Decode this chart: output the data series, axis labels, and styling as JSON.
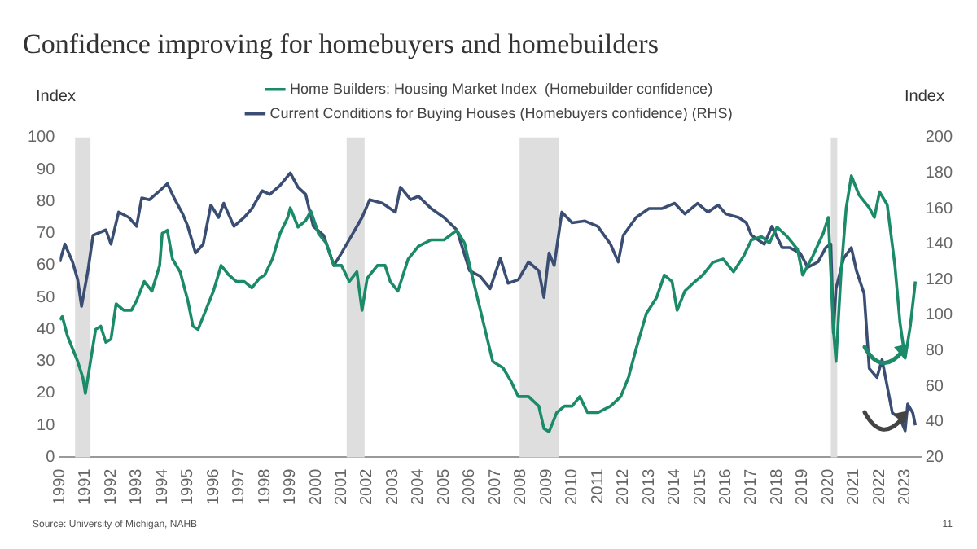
{
  "chart_data": {
    "type": "line",
    "title": "Confidence improving for homebuyers and homebuilders",
    "ylabel": "Index",
    "y2label": "Index",
    "annotations": [
      "Source: University of Michigan, NAHB",
      "11"
    ],
    "xlim": [
      1990,
      2023.6
    ],
    "xticks": [
      1990,
      1991,
      1992,
      1993,
      1994,
      1995,
      1996,
      1997,
      1998,
      1999,
      2000,
      2001,
      2002,
      2003,
      2004,
      2005,
      2006,
      2007,
      2008,
      2009,
      2010,
      2011,
      2012,
      2013,
      2014,
      2015,
      2016,
      2017,
      2018,
      2019,
      2020,
      2021,
      2022,
      2023
    ],
    "ylim": [
      0,
      100
    ],
    "yticks": [
      0,
      10,
      20,
      30,
      40,
      50,
      60,
      70,
      80,
      90,
      100
    ],
    "y2lim": [
      20,
      200
    ],
    "y2ticks": [
      20,
      40,
      60,
      80,
      100,
      120,
      140,
      160,
      180,
      200
    ],
    "grid": false,
    "legend": "top",
    "marker": "none",
    "line_style": "solid",
    "bands": [
      {
        "axis": "x",
        "from": 1990.6,
        "to": 1991.2,
        "color": "#dedede"
      },
      {
        "axis": "x",
        "from": 2001.2,
        "to": 2001.9,
        "color": "#dedede"
      },
      {
        "axis": "x",
        "from": 2007.95,
        "to": 2009.5,
        "color": "#dedede"
      },
      {
        "axis": "x",
        "from": 2020.1,
        "to": 2020.35,
        "color": "#dedede"
      }
    ],
    "series": [
      {
        "name": "Home Builders: Housing Market Index  (Homebuilder confidence)",
        "color": "#1b8a68",
        "x": [
          1990,
          1990.1,
          1990.3,
          1990.5,
          1990.7,
          1990.9,
          1991,
          1991.2,
          1991.4,
          1991.6,
          1991.8,
          1992,
          1992.2,
          1992.5,
          1992.8,
          1993,
          1993.3,
          1993.6,
          1993.9,
          1994,
          1994.2,
          1994.4,
          1994.7,
          1995,
          1995.2,
          1995.4,
          1995.7,
          1996,
          1996.3,
          1996.6,
          1996.9,
          1997.2,
          1997.5,
          1997.8,
          1998,
          1998.3,
          1998.6,
          1998.9,
          1999,
          1999.3,
          1999.6,
          1999.8,
          2000.1,
          2000.4,
          2000.7,
          2001,
          2001.3,
          2001.6,
          2001.8,
          2002,
          2002.4,
          2002.7,
          2002.9,
          2003.2,
          2003.6,
          2004,
          2004.5,
          2005,
          2005.5,
          2005.8,
          2006,
          2006.3,
          2006.6,
          2006.9,
          2007.3,
          2007.6,
          2007.9,
          2008.3,
          2008.7,
          2008.9,
          2009.1,
          2009.4,
          2009.7,
          2010,
          2010.3,
          2010.6,
          2011,
          2011.5,
          2011.9,
          2012.2,
          2012.5,
          2012.9,
          2013.3,
          2013.6,
          2013.9,
          2014.1,
          2014.4,
          2014.8,
          2015.1,
          2015.5,
          2015.9,
          2016.3,
          2016.7,
          2017,
          2017.4,
          2017.7,
          2018,
          2018.4,
          2018.8,
          2019,
          2019.4,
          2019.8,
          2020,
          2020.2,
          2020.3,
          2020.5,
          2020.7,
          2020.9,
          2021.2,
          2021.6,
          2021.8,
          2022,
          2022.3,
          2022.6,
          2022.8,
          2023,
          2023.2,
          2023.4
        ],
        "values": [
          43,
          44,
          38,
          34,
          30,
          25,
          20,
          30,
          40,
          41,
          36,
          37,
          48,
          46,
          46,
          49,
          55,
          52,
          60,
          70,
          71,
          62,
          58,
          49,
          41,
          40,
          46,
          52,
          60,
          57,
          55,
          55,
          53,
          56,
          57,
          62,
          70,
          75,
          78,
          72,
          74,
          77,
          70,
          67,
          60,
          60,
          55,
          58,
          46,
          56,
          60,
          60,
          55,
          52,
          62,
          66,
          68,
          68,
          71,
          67,
          60,
          50,
          40,
          30,
          28,
          24,
          19,
          19,
          16,
          9,
          8,
          14,
          16,
          16,
          19,
          14,
          14,
          16,
          19,
          25,
          34,
          45,
          50,
          57,
          55,
          46,
          52,
          55,
          57,
          61,
          62,
          58,
          63,
          68,
          69,
          67,
          72,
          69,
          65,
          57,
          63,
          70,
          75,
          40,
          30,
          58,
          78,
          88,
          82,
          78,
          75,
          83,
          79,
          60,
          42,
          31,
          41,
          55
        ]
      },
      {
        "name": "Current Conditions for Buying Houses (Homebuyers confidence) (RHS)",
        "color": "#3a4d72",
        "axis": "y2",
        "x": [
          1990,
          1990.2,
          1990.5,
          1990.7,
          1990.85,
          1991.1,
          1991.3,
          1991.8,
          1992,
          1992.3,
          1992.7,
          1993,
          1993.2,
          1993.5,
          1993.9,
          1994.2,
          1994.5,
          1994.8,
          1995,
          1995.3,
          1995.6,
          1995.9,
          1996.2,
          1996.4,
          1996.8,
          1997.2,
          1997.5,
          1997.9,
          1998.2,
          1998.6,
          1999,
          1999.3,
          1999.6,
          1999.9,
          2000.3,
          2000.7,
          2001,
          2001.4,
          2001.8,
          2002.1,
          2002.6,
          2003.1,
          2003.3,
          2003.7,
          2004,
          2004.5,
          2005,
          2005.5,
          2006,
          2006.4,
          2006.8,
          2007.2,
          2007.5,
          2007.9,
          2008.3,
          2008.7,
          2008.9,
          2009.1,
          2009.3,
          2009.6,
          2010,
          2010.5,
          2011,
          2011.5,
          2011.8,
          2012,
          2012.5,
          2013,
          2013.5,
          2014,
          2014.4,
          2014.9,
          2015.3,
          2015.7,
          2016,
          2016.5,
          2016.8,
          2017,
          2017.5,
          2017.8,
          2018.2,
          2018.5,
          2018.9,
          2019.2,
          2019.6,
          2019.9,
          2020.1,
          2020.2,
          2020.3,
          2020.6,
          2020.9,
          2021.1,
          2021.4,
          2021.6,
          2021.9,
          2022.1,
          2022.3,
          2022.5,
          2022.8,
          2023,
          2023.1,
          2023.3,
          2023.4
        ],
        "values": [
          130,
          140,
          130,
          120,
          105,
          125,
          145,
          148,
          140,
          158,
          155,
          150,
          166,
          165,
          170,
          174,
          165,
          157,
          150,
          135,
          140,
          162,
          155,
          163,
          150,
          155,
          160,
          170,
          168,
          173,
          180,
          172,
          168,
          150,
          145,
          128,
          135,
          145,
          155,
          165,
          163,
          158,
          172,
          165,
          167,
          160,
          155,
          148,
          125,
          122,
          115,
          132,
          118,
          120,
          130,
          125,
          110,
          135,
          128,
          158,
          152,
          153,
          150,
          140,
          130,
          145,
          155,
          160,
          160,
          163,
          157,
          163,
          158,
          162,
          157,
          155,
          152,
          145,
          140,
          150,
          138,
          138,
          135,
          127,
          130,
          138,
          140,
          90,
          115,
          132,
          138,
          125,
          112,
          70,
          65,
          75,
          60,
          45,
          42,
          35,
          50,
          45,
          38
        ]
      }
    ]
  }
}
